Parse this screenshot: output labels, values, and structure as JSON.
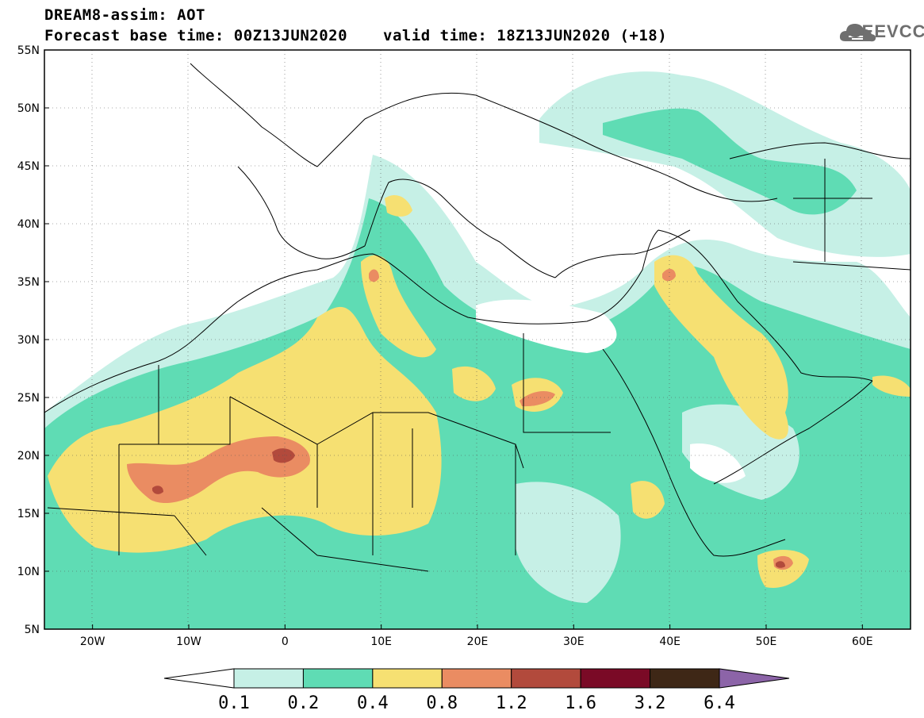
{
  "title": {
    "line1": "DREAM8-assim: AOT",
    "base": "Forecast base time: 00Z13JUN2020",
    "valid": "valid time: 18Z13JUN2020 (+18)"
  },
  "logo": {
    "text": "SEEVCCC",
    "icon": "cloud-icon"
  },
  "map": {
    "lon_range": [
      -25,
      65
    ],
    "lat_range": [
      5,
      55
    ],
    "lat_ticks": [
      "55N",
      "50N",
      "45N",
      "40N",
      "35N",
      "30N",
      "25N",
      "20N",
      "15N",
      "10N",
      "5N"
    ],
    "lon_ticks": [
      "20W",
      "10W",
      "0",
      "10E",
      "20E",
      "30E",
      "40E",
      "50E",
      "60E"
    ],
    "grid": "dotted"
  },
  "colorbar": {
    "colors": [
      "#ffffff",
      "#c6f0e6",
      "#5fdcb4",
      "#f6e072",
      "#ea8c62",
      "#b24a3c",
      "#7a0a26",
      "#3e2716",
      "#8c64a8"
    ],
    "labels": [
      "0.1",
      "0.2",
      "0.4",
      "0.8",
      "1.2",
      "1.6",
      "3.2",
      "6.4"
    ]
  }
}
